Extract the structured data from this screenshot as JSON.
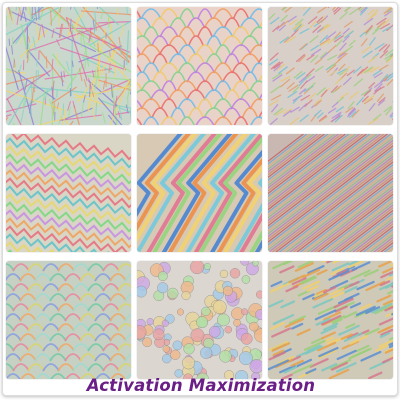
{
  "caption": {
    "text": "Activation Maximization",
    "color": "#6a1e86"
  },
  "tiles": [
    {
      "pattern": "tangled-lines",
      "palette": [
        "#e06fae",
        "#7fd3c5",
        "#f3d66b",
        "#8e7fd8",
        "#ef8f62",
        "#9adf8a"
      ]
    },
    {
      "pattern": "arches",
      "palette": [
        "#e96f6f",
        "#6fbbe9",
        "#f2c96a",
        "#83d28f",
        "#c07fe0",
        "#f29c5f"
      ]
    },
    {
      "pattern": "fine-diagonal",
      "palette": [
        "#d97f8e",
        "#77c2d6",
        "#e8c878",
        "#9fcf85",
        "#b590d8",
        "#e0a070"
      ]
    },
    {
      "pattern": "zigzag",
      "palette": [
        "#e7707e",
        "#5fc3c9",
        "#e6d86a",
        "#7bd87f",
        "#c68fe3",
        "#f0a25e"
      ]
    },
    {
      "pattern": "diagonal-bands",
      "palette": [
        "#3e7fd6",
        "#ef8a3f",
        "#f4d36a",
        "#6cc9e0",
        "#e26f8f",
        "#8fd67a"
      ]
    },
    {
      "pattern": "hatched-diagonal",
      "palette": [
        "#c75a5a",
        "#6fa8cf",
        "#d9b07a",
        "#8db98a",
        "#b77fb8",
        "#d58b6a"
      ]
    },
    {
      "pattern": "scales",
      "palette": [
        "#78c9a6",
        "#e88aa0",
        "#d9d46e",
        "#8a9fe0",
        "#f0a86a",
        "#9fd9d0"
      ]
    },
    {
      "pattern": "dots",
      "palette": [
        "#e9a3a3",
        "#a3cce9",
        "#e9d59a",
        "#b3e0a6",
        "#cfa8e6",
        "#f1b98a"
      ]
    },
    {
      "pattern": "dashes",
      "palette": [
        "#5a8fd0",
        "#e8a24a",
        "#f0d06c",
        "#7cc7c0",
        "#d6788c",
        "#9bcf7a"
      ]
    }
  ]
}
